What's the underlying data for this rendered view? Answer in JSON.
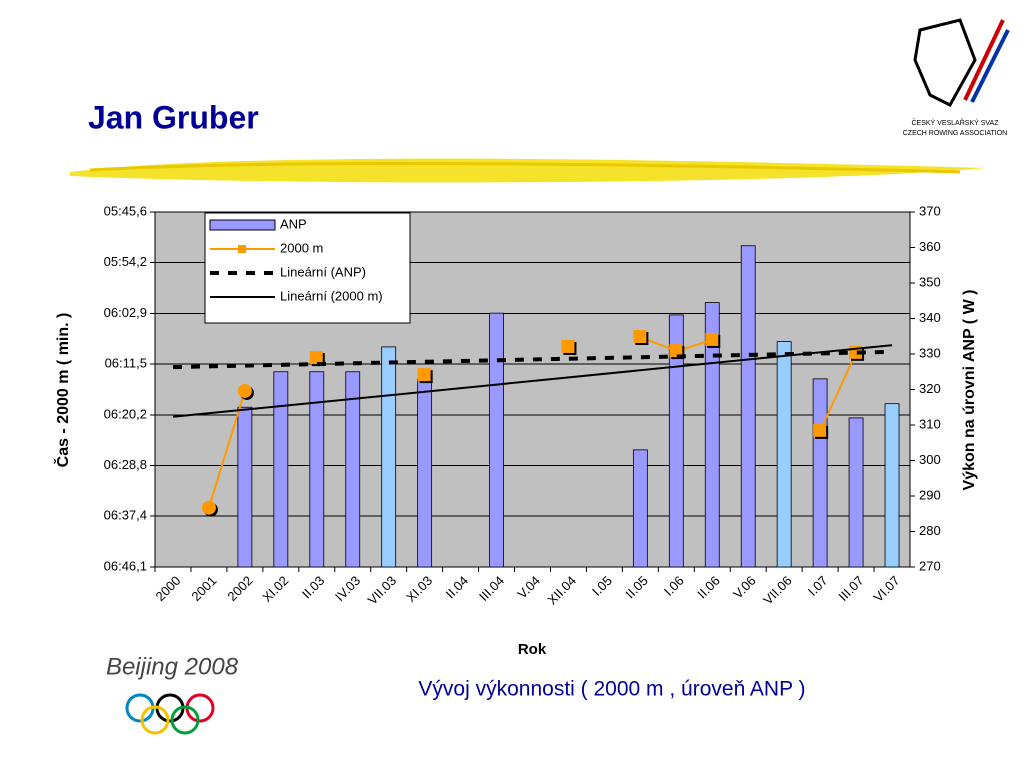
{
  "header": {
    "title": "Jan Gruber"
  },
  "logos": {
    "association_cz": "ČESKÝ VESLAŘSKÝ SVAZ",
    "association_en": "CZECH ROWING ASSOCIATION",
    "olympics": "Beijing 2008"
  },
  "chart_data": {
    "type": "combo",
    "title": "Vývoj výkonnosti ( 2000 m , úroveň ANP )",
    "x_label": "Rok",
    "y_label": "Čas - 2000 m ( min. )",
    "y2_label": "Výkon na úrovni ANP ( W )",
    "categories": [
      "2000",
      "2001",
      "2002",
      "XI.02",
      "II.03",
      "IV.03",
      "VII.03",
      "XI.03",
      "II.04",
      "III.04",
      "V.04",
      "XII.04",
      "I.05",
      "II.05",
      "I.06",
      "II.06",
      "V.06",
      "VII.06",
      "I.07",
      "III.07",
      "VI.07"
    ],
    "ylim": [
      345.6,
      406.1
    ],
    "y_inverted": true,
    "yticks": [
      {
        "value": 345.6,
        "label": "05:45,6"
      },
      {
        "value": 354.2,
        "label": "05:54,2"
      },
      {
        "value": 362.9,
        "label": "06:02,9"
      },
      {
        "value": 371.5,
        "label": "06:11,5"
      },
      {
        "value": 380.2,
        "label": "06:20,2"
      },
      {
        "value": 388.8,
        "label": "06:28,8"
      },
      {
        "value": 397.4,
        "label": "06:37,4"
      },
      {
        "value": 406.1,
        "label": "06:46,1"
      }
    ],
    "y2lim": [
      270,
      370
    ],
    "y2ticks": [
      270,
      280,
      290,
      300,
      310,
      320,
      330,
      340,
      350,
      360,
      370
    ],
    "plot_background": "#c0c0c0",
    "legend": "top-left",
    "series": [
      {
        "name": "ANP",
        "type": "bar",
        "axis": "y2",
        "color": "#9999ff",
        "colors": [
          null,
          null,
          "#9999ff",
          "#9999ff",
          "#9999ff",
          "#9999ff",
          "#99ccff",
          "#9999ff",
          null,
          "#9999ff",
          null,
          null,
          null,
          "#9999ff",
          "#9999ff",
          "#9999ff",
          "#9999ff",
          "#99ccff",
          "#9999ff",
          "#9999ff",
          "#99ccff"
        ],
        "values": [
          null,
          null,
          315,
          325,
          325,
          325,
          332,
          323,
          null,
          341.5,
          null,
          null,
          null,
          303,
          341,
          344.5,
          360.5,
          333.5,
          323,
          312,
          316
        ]
      },
      {
        "name": "2000 m",
        "type": "line",
        "axis": "y",
        "color": "#ff9900",
        "values": [
          null,
          396.0,
          376.1,
          null,
          370.5,
          null,
          null,
          373.4,
          null,
          null,
          null,
          368.6,
          null,
          366.9,
          369.3,
          367.4,
          null,
          null,
          382.9,
          369.6,
          null
        ]
      },
      {
        "name": "Lineární (ANP)",
        "type": "trend",
        "axis": "y2",
        "color": "#000000",
        "dash": true,
        "values": [
          326.3,
          null,
          null,
          null,
          null,
          null,
          null,
          null,
          null,
          null,
          null,
          null,
          null,
          null,
          null,
          null,
          null,
          null,
          null,
          null,
          330.6
        ]
      },
      {
        "name": "Lineární (2000 m)",
        "type": "trend",
        "axis": "y",
        "color": "#000000",
        "dash": false,
        "values": [
          380.5,
          null,
          null,
          null,
          null,
          null,
          null,
          null,
          null,
          null,
          null,
          null,
          null,
          null,
          null,
          null,
          null,
          null,
          null,
          null,
          368.3
        ]
      }
    ]
  }
}
